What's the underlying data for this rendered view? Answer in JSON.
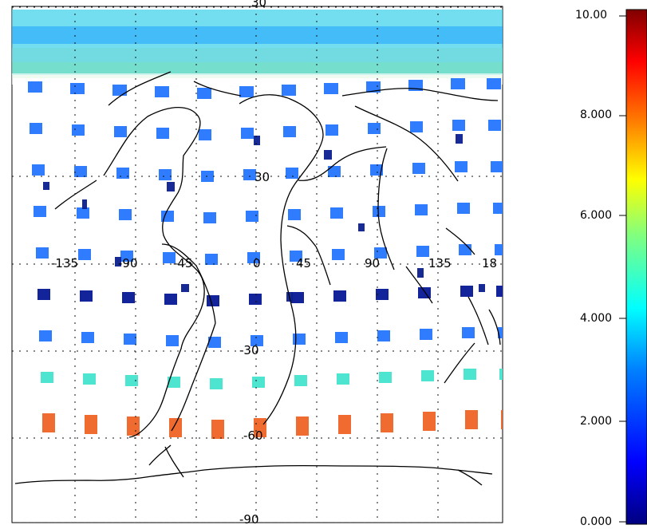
{
  "map": {
    "projection": "cylindrical equidistant",
    "gridlines": "dotted",
    "coastlines": true,
    "longitude_labels": [
      "-135",
      "-90",
      "-45",
      "0",
      "45",
      "90",
      "135",
      "18"
    ],
    "latitude_labels": {
      "top": "30",
      "mid": "30",
      "lower": "-30",
      "bottom_mid": "-60",
      "bottom": "-90"
    }
  },
  "colorbar": {
    "min": 0,
    "max": 10,
    "tick_labels": [
      "10.00",
      "8.000",
      "6.000",
      "4.000",
      "2.000",
      "0.000"
    ],
    "colors": [
      "#00007f",
      "#0000ff",
      "#0080ff",
      "#00ffff",
      "#80ff80",
      "#ffff00",
      "#ff8000",
      "#ff0000",
      "#7f0000"
    ]
  }
}
